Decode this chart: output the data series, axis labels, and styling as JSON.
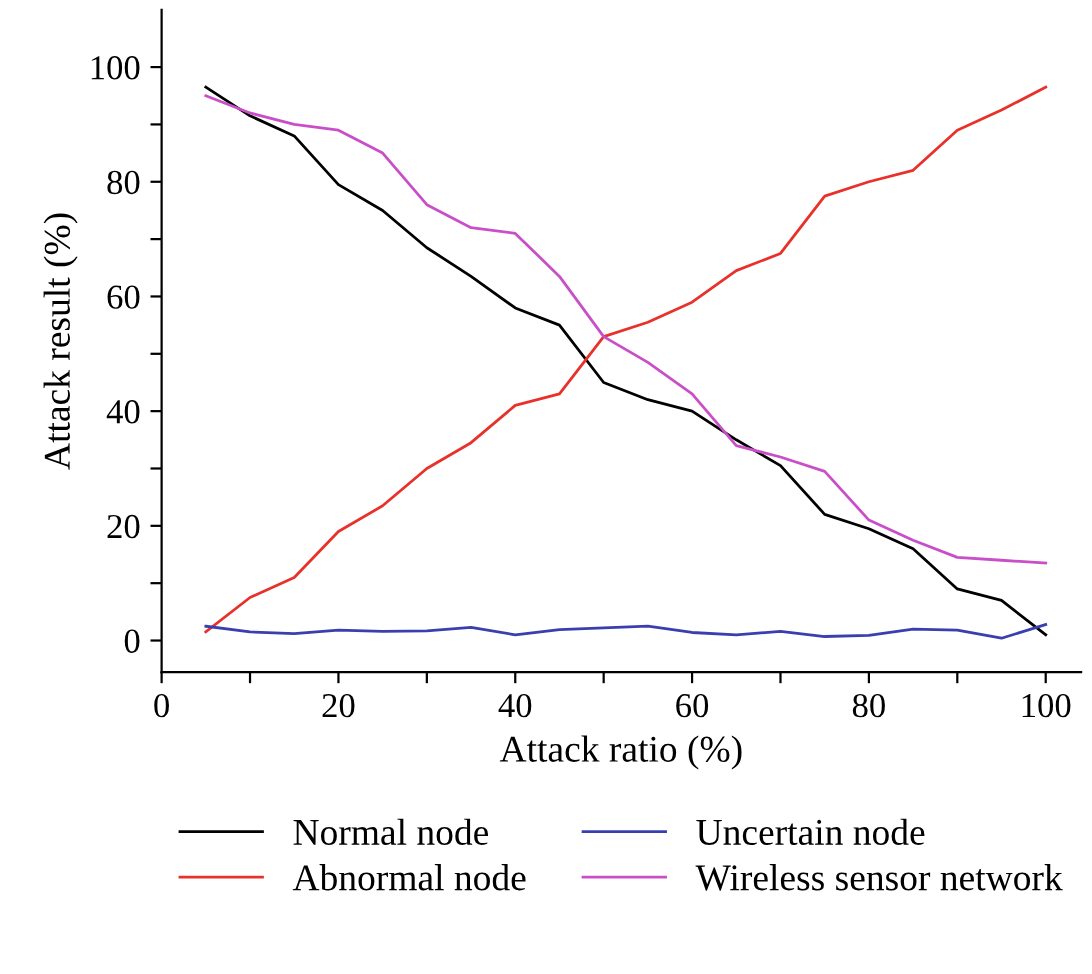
{
  "chart_data": {
    "type": "line",
    "xlabel": "Attack ratio (%)",
    "ylabel": "Attack result (%)",
    "x": [
      5,
      10,
      15,
      20,
      25,
      30,
      35,
      40,
      45,
      50,
      55,
      60,
      65,
      70,
      75,
      80,
      85,
      90,
      95,
      100
    ],
    "series": [
      {
        "name": "Normal node",
        "color": "#000000",
        "values": [
          96.5,
          91.5,
          88,
          79.5,
          75,
          68.5,
          63.5,
          58,
          55,
          45,
          42,
          40,
          35,
          30.5,
          22,
          19.5,
          16,
          9,
          7,
          1
        ]
      },
      {
        "name": "Abnormal node",
        "color": "#e8312a",
        "values": [
          1.5,
          7.5,
          11,
          19,
          23.5,
          30,
          34.5,
          41,
          43,
          53,
          55.5,
          59,
          64.5,
          67.5,
          77.5,
          80,
          82,
          89,
          92.5,
          96.5
        ]
      },
      {
        "name": "Uncertain node",
        "color": "#3a3fb0",
        "values": [
          2.5,
          1.5,
          1.2,
          1.8,
          1.6,
          1.7,
          2.3,
          1,
          1.9,
          2.2,
          2.5,
          1.4,
          1,
          1.6,
          0.7,
          0.9,
          2,
          1.8,
          0.4,
          2.8
        ]
      },
      {
        "name": "Wireless sensor network",
        "color": "#c94fc9",
        "values": [
          95,
          92,
          90,
          89,
          85,
          76,
          72,
          71,
          63.5,
          53,
          48.5,
          43,
          34,
          32,
          29.5,
          21,
          17.5,
          14.5,
          14,
          13.5
        ]
      }
    ],
    "xlim": [
      0,
      104
    ],
    "ylim": [
      -5.5,
      110
    ],
    "xticks": [
      0,
      {
        "value": 10,
        "label": null
      },
      20,
      {
        "value": 30,
        "label": null
      },
      40,
      {
        "value": 50,
        "label": null
      },
      60,
      {
        "value": 70,
        "label": null
      },
      80,
      {
        "value": 90,
        "label": null
      },
      100
    ],
    "yticks": [
      0,
      {
        "value": 10,
        "label": null
      },
      20,
      {
        "value": 30,
        "label": null
      },
      40,
      {
        "value": 50,
        "label": null
      },
      60,
      {
        "value": 70,
        "label": null
      },
      80,
      {
        "value": 90,
        "label": null
      },
      100
    ],
    "legend": "bottom",
    "grid": false,
    "marker": "none",
    "line_style": "solid"
  }
}
